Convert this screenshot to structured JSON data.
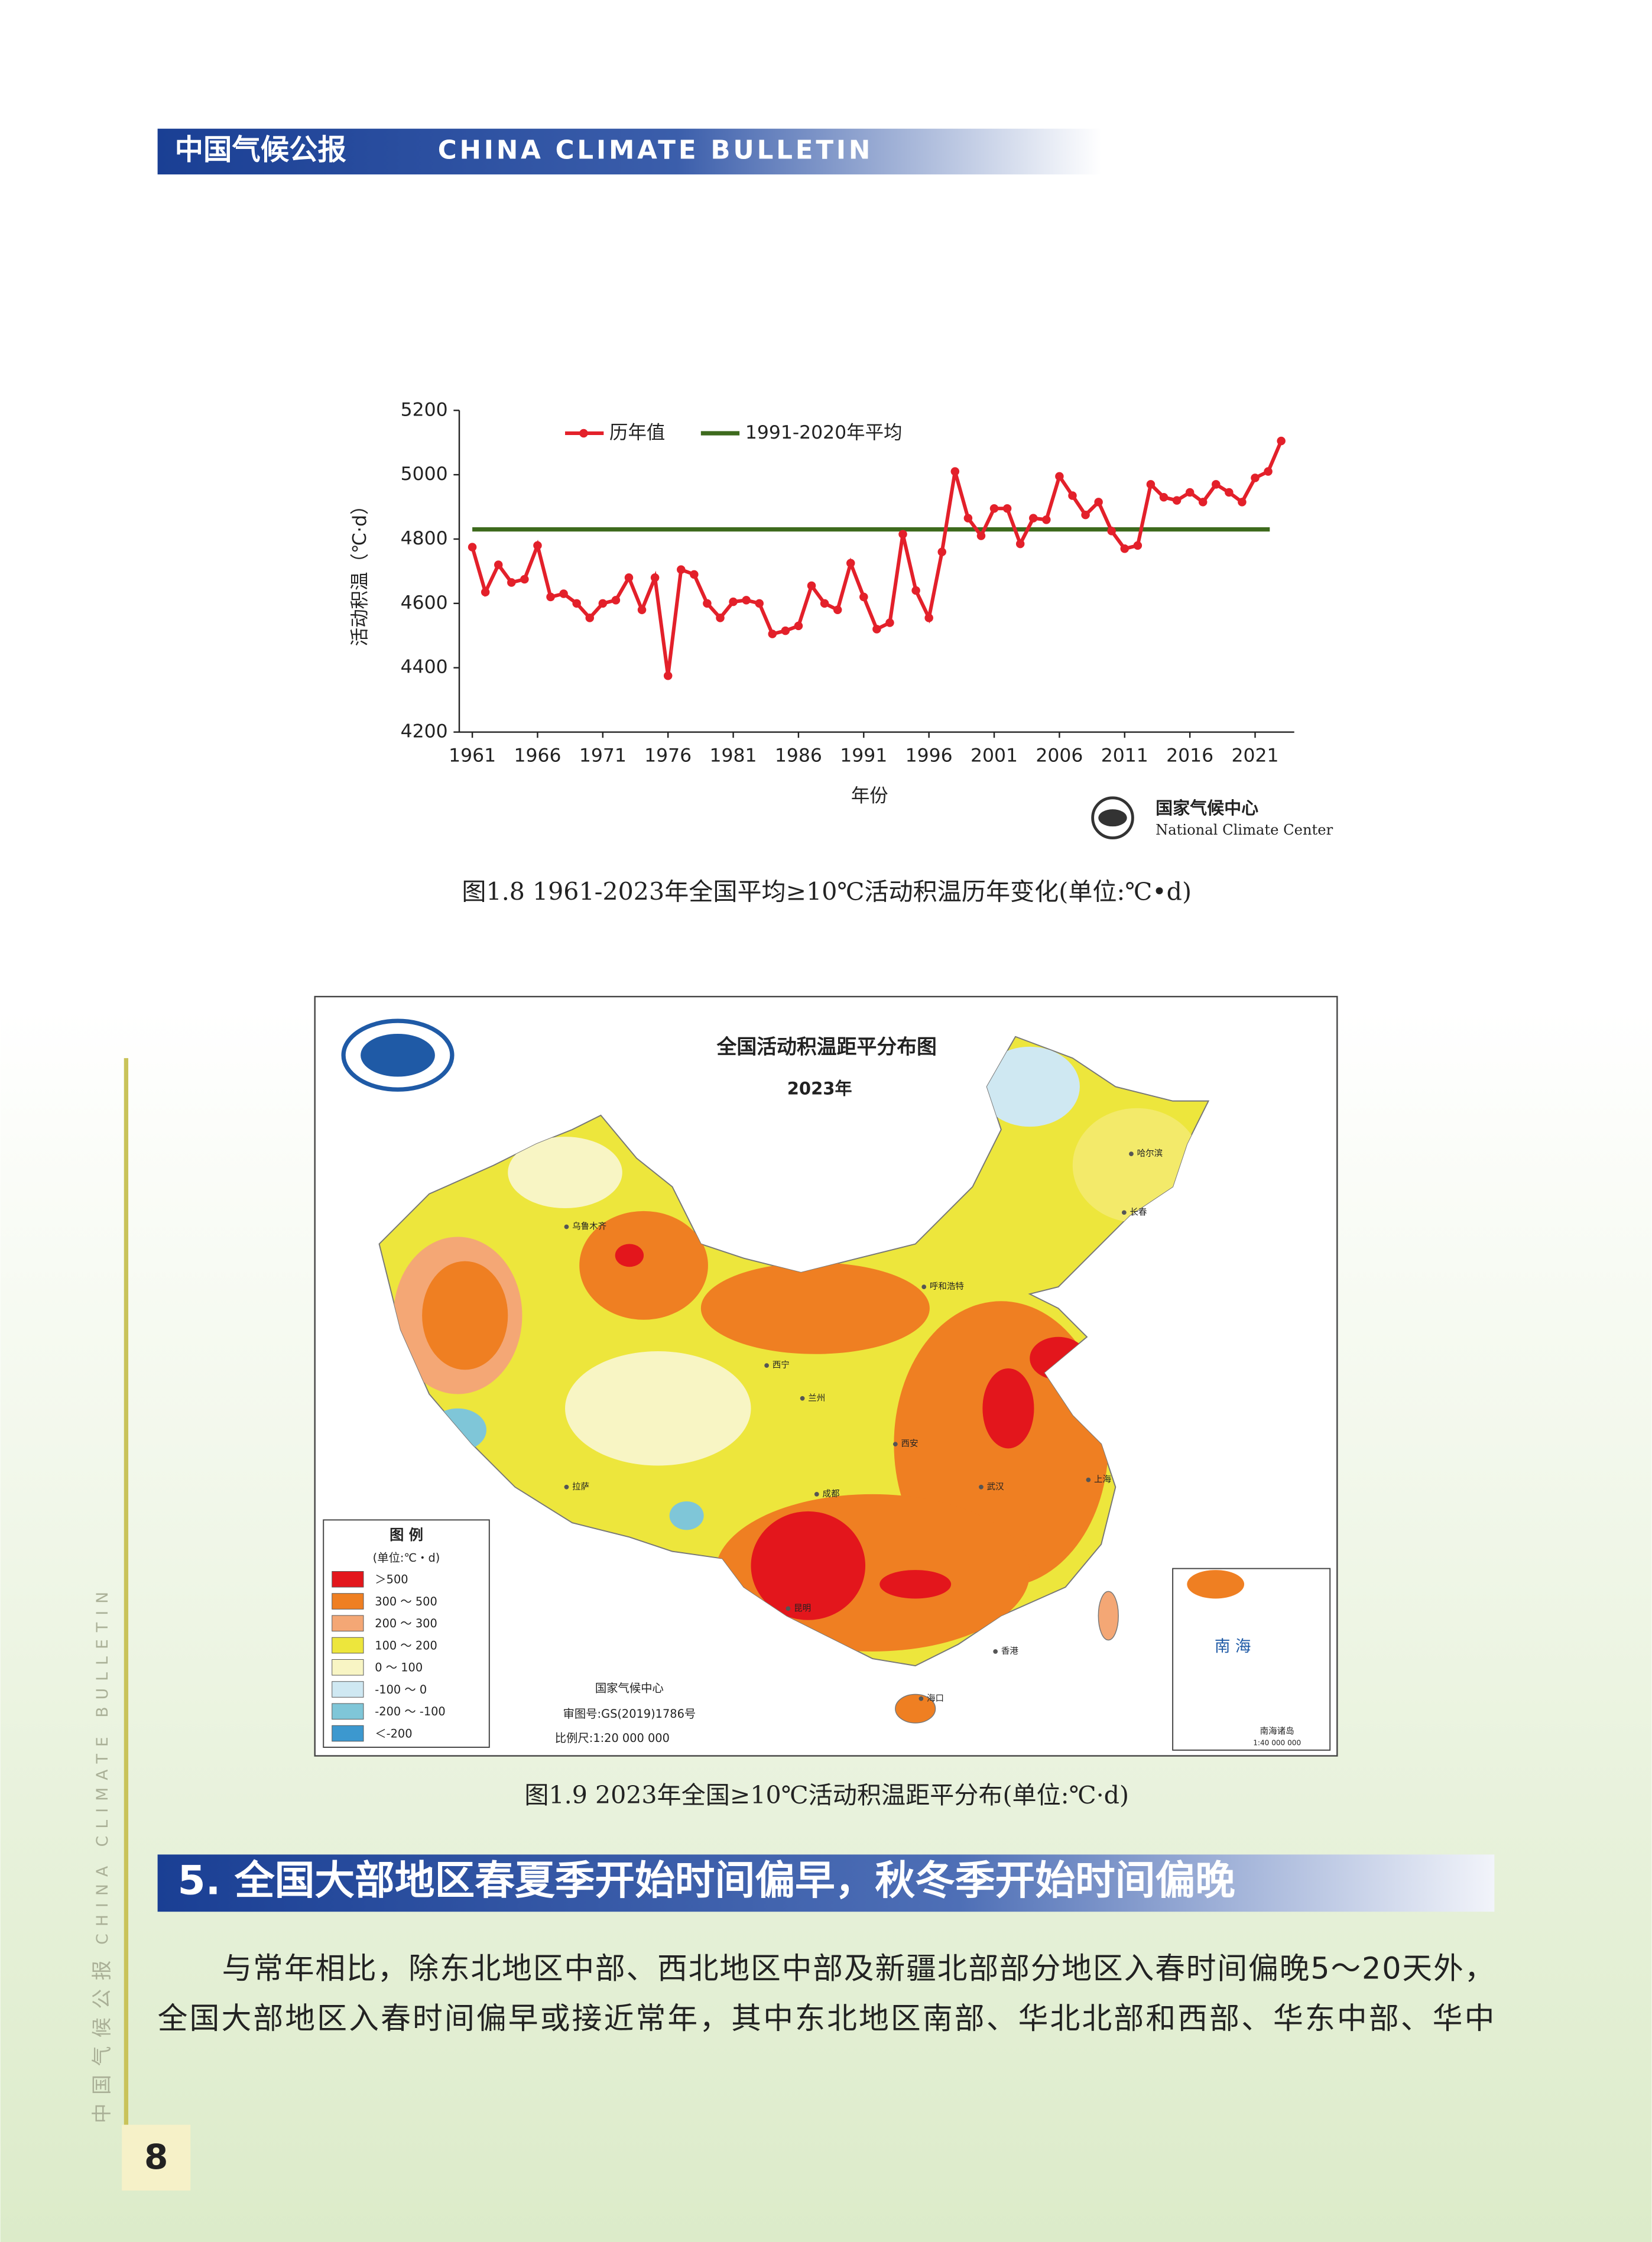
{
  "header": {
    "title_cn": "中国气候公报",
    "title_en": "CHINA CLIMATE BULLETIN"
  },
  "chart_data": {
    "type": "line",
    "x_label": "年份",
    "y_label": "活动积温（℃·d）",
    "x": [
      1961,
      1962,
      1963,
      1964,
      1965,
      1966,
      1967,
      1968,
      1969,
      1970,
      1971,
      1972,
      1973,
      1974,
      1975,
      1976,
      1977,
      1978,
      1979,
      1980,
      1981,
      1982,
      1983,
      1984,
      1985,
      1986,
      1987,
      1988,
      1989,
      1990,
      1991,
      1992,
      1993,
      1994,
      1995,
      1996,
      1997,
      1998,
      1999,
      2000,
      2001,
      2002,
      2003,
      2004,
      2005,
      2006,
      2007,
      2008,
      2009,
      2010,
      2011,
      2012,
      2013,
      2014,
      2015,
      2016,
      2017,
      2018,
      2019,
      2020,
      2021,
      2022,
      2023
    ],
    "series": [
      {
        "name": "历年值",
        "color": "#e3202a",
        "values": [
          4775,
          4635,
          4720,
          4665,
          4675,
          4780,
          4620,
          4630,
          4600,
          4555,
          4600,
          4610,
          4680,
          4580,
          4680,
          4375,
          4705,
          4690,
          4600,
          4555,
          4605,
          4610,
          4600,
          4505,
          4515,
          4530,
          4655,
          4600,
          4580,
          4725,
          4620,
          4520,
          4540,
          4815,
          4640,
          4555,
          4760,
          5010,
          4865,
          4810,
          4895,
          4895,
          4785,
          4865,
          4860,
          4995,
          4935,
          4875,
          4915,
          4825,
          4770,
          4780,
          4970,
          4930,
          4920,
          4945,
          4915,
          4970,
          4945,
          4915,
          4990,
          5010,
          5105
        ]
      }
    ],
    "reference_line": {
      "name": "1991-2020年平均",
      "value": 4830,
      "color": "#3d6a1d"
    },
    "xlim": [
      1960,
      2024
    ],
    "xticks": [
      1961,
      1966,
      1971,
      1976,
      1981,
      1986,
      1991,
      1996,
      2001,
      2006,
      2011,
      2016,
      2021
    ],
    "ylim": [
      4200,
      5200
    ],
    "yticks": [
      4200,
      4400,
      4600,
      4800,
      5000,
      5200
    ],
    "grid": false,
    "credit_cn": "国家气候中心",
    "credit_en": "National Climate Center"
  },
  "figure_1_8_caption": "图1.8  1961-2023年全国平均≥10℃活动积温历年变化(单位:℃•d)",
  "map": {
    "title": "全国活动积温距平分布图",
    "year": "2023年",
    "legend_title": "图 例",
    "legend_unit": "(单位:℃・d)",
    "legend": [
      {
        "label": "＞500",
        "color": "#e3161c"
      },
      {
        "label": "300 ～ 500",
        "color": "#ef7f22"
      },
      {
        "label": "200 ～ 300",
        "color": "#f4a775"
      },
      {
        "label": "100 ～ 200",
        "color": "#ede63c"
      },
      {
        "label": "0 ～ 100",
        "color": "#f8f5c4"
      },
      {
        "label": "-100 ～ 0",
        "color": "#cfe8f2"
      },
      {
        "label": "-200 ～ -100",
        "color": "#7fc6d8"
      },
      {
        "label": "＜-200",
        "color": "#3c98cf"
      }
    ],
    "credit": "国家气候中心",
    "approval": "审图号:GS(2019)1786号",
    "scale": "比例尺:1:20 000 000",
    "inset_title": "南 海",
    "inset_label": "南海诸岛",
    "inset_scale": "1:40 000 000",
    "cities": [
      "乌鲁木齐",
      "拉萨",
      "哈尔滨",
      "长春",
      "呼和浩特",
      "西宁",
      "兰州",
      "西安",
      "成都",
      "昆明",
      "武汉",
      "上海",
      "香港",
      "海口"
    ]
  },
  "figure_1_9_caption": "图1.9  2023年全国≥10℃活动积温距平分布(单位:℃·d)",
  "section": {
    "heading": "5. 全国大部地区春夏季开始时间偏早，秋冬季开始时间偏晚",
    "paragraph": [
      "与常年相比，除东北地区中部、西北地区中部及新疆北部部分地区入春时间偏晚5～20天外，",
      "全国大部地区入春时间偏早或接近常年，其中东北地区南部、华北北部和西部、华东中部、华中"
    ]
  },
  "sidebar": {
    "title_cn": "中国气候公报",
    "title_en": "CHINA CLIMATE BULLETIN"
  },
  "page_number": "8"
}
